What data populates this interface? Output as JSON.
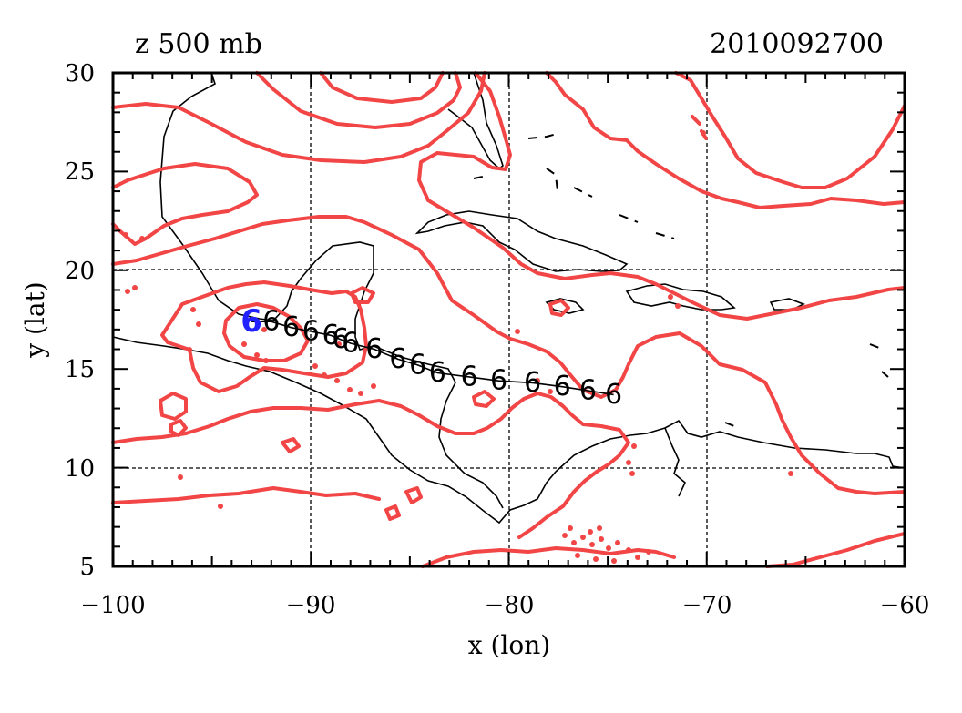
{
  "header": {
    "field_label": "z 500 mb",
    "datetime": "2010092700"
  },
  "axes": {
    "xlabel": "x (lon)",
    "ylabel": "y (lat)",
    "x_ticks": [
      "−100",
      "−90",
      "−80",
      "−70",
      "−60"
    ],
    "y_ticks": [
      "5",
      "10",
      "15",
      "20",
      "25",
      "30"
    ]
  },
  "chart_data": {
    "type": "map",
    "xlim": [
      -100,
      -60
    ],
    "ylim": [
      5,
      30
    ],
    "grid": true,
    "grid_lon": [
      -90,
      -80,
      -70
    ],
    "grid_lat": [
      10,
      20
    ],
    "contour_color": "#f24545",
    "current_marker_color": "#2222ff",
    "storm_symbol": "6",
    "storm_track": [
      {
        "lon": -93.0,
        "lat": 17.4,
        "current": true
      },
      {
        "lon": -92.0,
        "lat": 17.4
      },
      {
        "lon": -91.0,
        "lat": 17.1
      },
      {
        "lon": -90.0,
        "lat": 16.9
      },
      {
        "lon": -89.0,
        "lat": 16.7
      },
      {
        "lon": -88.5,
        "lat": 16.5
      },
      {
        "lon": -88.0,
        "lat": 16.3
      },
      {
        "lon": -86.8,
        "lat": 16.0
      },
      {
        "lon": -85.6,
        "lat": 15.5
      },
      {
        "lon": -84.6,
        "lat": 15.2
      },
      {
        "lon": -83.6,
        "lat": 14.8
      },
      {
        "lon": -82.0,
        "lat": 14.6
      },
      {
        "lon": -80.5,
        "lat": 14.4
      },
      {
        "lon": -78.8,
        "lat": 14.3
      },
      {
        "lon": -77.3,
        "lat": 14.1
      },
      {
        "lon": -76.0,
        "lat": 13.9
      },
      {
        "lon": -74.7,
        "lat": 13.7
      }
    ]
  }
}
